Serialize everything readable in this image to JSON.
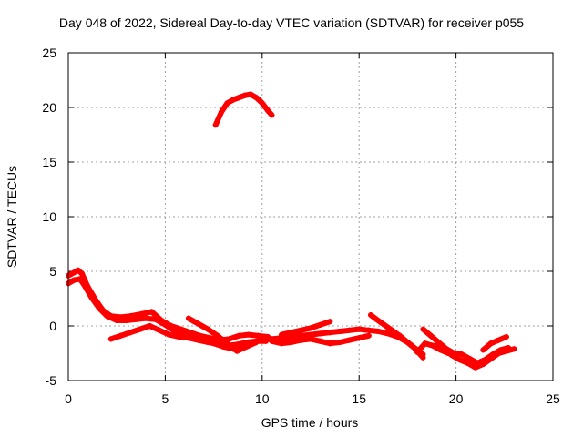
{
  "chart_data": {
    "type": "scatter",
    "title": "Day 048 of 2022, Sidereal Day-to-day VTEC variation (SDTVAR) for receiver p055",
    "xlabel": "GPS time / hours",
    "ylabel": "SDTVAR / TECUs",
    "xlim": [
      0,
      25
    ],
    "ylim": [
      -5,
      25
    ],
    "xticks": [
      "0",
      "5",
      "10",
      "15",
      "20",
      "25"
    ],
    "yticks": [
      "-5",
      "0",
      "5",
      "10",
      "15",
      "20",
      "25"
    ],
    "grid": true,
    "marker": "+",
    "color": "#ff0000",
    "series": [
      {
        "name": "track-main-lower",
        "x": [
          0.0,
          0.3,
          0.6,
          0.8,
          1.2,
          1.6,
          2.0,
          2.5,
          3.0,
          3.5,
          4.0,
          4.5,
          5.0,
          5.5,
          6.0,
          6.5,
          7.0,
          7.5,
          8.0,
          8.5,
          9.0,
          9.5,
          10.0,
          10.5,
          11.0,
          11.5,
          12.0,
          12.5,
          13.0,
          13.5,
          14.0,
          14.5,
          15.0,
          15.5,
          16.0,
          16.5,
          17.0,
          17.5,
          18.0,
          18.3
        ],
        "y": [
          3.9,
          4.2,
          4.3,
          3.8,
          2.6,
          1.6,
          0.9,
          0.5,
          0.5,
          0.6,
          0.7,
          0.6,
          0.1,
          -0.5,
          -0.9,
          -1.2,
          -1.4,
          -1.6,
          -1.9,
          -2.1,
          -1.8,
          -1.5,
          -1.3,
          -1.2,
          -1.1,
          -1.0,
          -0.9,
          -0.8,
          -0.7,
          -0.6,
          -0.5,
          -0.4,
          -0.3,
          -0.4,
          -0.5,
          -0.7,
          -1.0,
          -1.5,
          -2.2,
          -2.6
        ]
      },
      {
        "name": "track-main-upper",
        "x": [
          0.0,
          0.3,
          0.5,
          0.7,
          1.0,
          1.4,
          1.8,
          2.2,
          2.7,
          3.2,
          3.8,
          4.3,
          4.8,
          5.3,
          5.8,
          6.3,
          6.8,
          7.3,
          7.8,
          8.3,
          8.8,
          9.3,
          9.8,
          10.3
        ],
        "y": [
          4.6,
          4.9,
          5.1,
          4.8,
          3.6,
          2.4,
          1.4,
          0.9,
          0.8,
          0.9,
          1.1,
          1.3,
          0.5,
          0.0,
          -0.3,
          -0.6,
          -0.9,
          -1.1,
          -1.3,
          -1.2,
          -0.9,
          -0.8,
          -0.9,
          -1.0
        ]
      },
      {
        "name": "track-secondary",
        "x": [
          2.2,
          2.7,
          3.2,
          3.7,
          4.2,
          4.7,
          5.2,
          5.7,
          6.2,
          6.7,
          7.2,
          7.7,
          8.2,
          8.7,
          9.2,
          9.7,
          10.2
        ],
        "y": [
          -1.2,
          -0.9,
          -0.6,
          -0.3,
          0.0,
          -0.4,
          -0.8,
          -1.0,
          -1.1,
          -1.3,
          -1.5,
          -1.6,
          -1.8,
          -1.7,
          -1.5,
          -1.4,
          -1.4
        ]
      },
      {
        "name": "track-branch",
        "x": [
          6.2,
          6.7,
          7.2,
          7.7,
          8.2,
          8.7,
          9.2,
          9.7
        ],
        "y": [
          0.7,
          0.2,
          -0.3,
          -0.9,
          -1.6,
          -2.3,
          -1.9,
          -1.5
        ]
      },
      {
        "name": "track-mid",
        "x": [
          10.5,
          11.0,
          11.5,
          12.0,
          12.5,
          13.0,
          13.5,
          14.0,
          14.5,
          15.0,
          15.5
        ],
        "y": [
          -1.4,
          -1.6,
          -1.5,
          -1.3,
          -1.2,
          -1.4,
          -1.6,
          -1.5,
          -1.3,
          -1.1,
          -0.9
        ]
      },
      {
        "name": "track-midhigh",
        "x": [
          11.0,
          11.5,
          12.0,
          12.5,
          13.0,
          13.5
        ],
        "y": [
          -0.8,
          -0.6,
          -0.4,
          -0.2,
          0.1,
          0.4
        ]
      },
      {
        "name": "track-late-upper",
        "x": [
          15.6,
          15.9,
          16.3,
          16.7,
          17.1,
          17.5,
          17.9,
          18.3
        ],
        "y": [
          1.0,
          0.6,
          0.1,
          -0.4,
          -0.9,
          -1.5,
          -2.1,
          -2.9
        ]
      },
      {
        "name": "track-late-branch",
        "x": [
          18.0,
          18.4,
          18.8,
          19.2,
          19.6,
          20.0
        ],
        "y": [
          -2.4,
          -1.6,
          -1.8,
          -2.2,
          -2.5,
          -2.7
        ]
      },
      {
        "name": "track-late-a",
        "x": [
          18.3,
          18.7,
          19.1,
          19.5,
          19.9,
          20.3,
          20.7,
          21.1,
          21.5,
          21.9,
          22.3,
          22.7
        ],
        "y": [
          -0.3,
          -0.9,
          -1.5,
          -2.1,
          -2.5,
          -2.6,
          -3.0,
          -3.4,
          -3.1,
          -2.6,
          -2.2,
          -2.0
        ]
      },
      {
        "name": "track-late-b",
        "x": [
          19.0,
          19.4,
          19.8,
          20.2,
          20.6,
          21.0,
          21.4,
          21.8,
          22.2,
          22.6,
          23.0
        ],
        "y": [
          -1.7,
          -2.1,
          -2.7,
          -3.1,
          -3.4,
          -3.8,
          -3.5,
          -3.0,
          -2.5,
          -2.3,
          -2.1
        ]
      },
      {
        "name": "track-late-c",
        "x": [
          21.4,
          21.8,
          22.2,
          22.6
        ],
        "y": [
          -2.2,
          -1.6,
          -1.3,
          -1.0
        ]
      },
      {
        "name": "track-arc-high",
        "x": [
          7.6,
          7.9,
          8.2,
          8.5,
          8.8,
          9.1,
          9.4,
          9.7,
          10.0,
          10.3,
          10.5
        ],
        "y": [
          18.4,
          19.6,
          20.4,
          20.7,
          20.9,
          21.1,
          21.2,
          20.9,
          20.4,
          19.7,
          19.3
        ]
      }
    ]
  }
}
